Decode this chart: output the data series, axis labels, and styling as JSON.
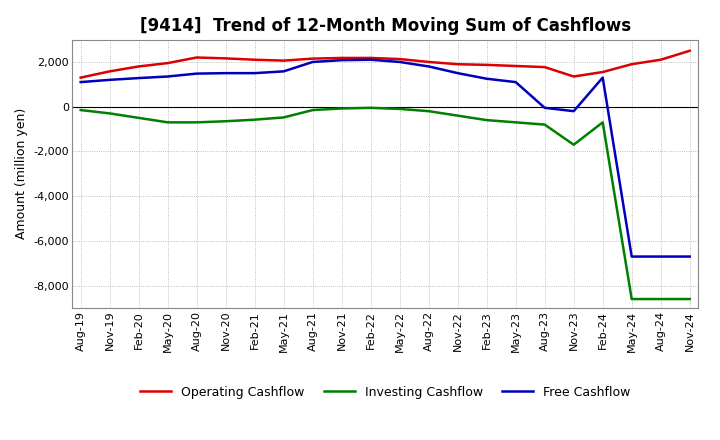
{
  "title": "[9414]  Trend of 12-Month Moving Sum of Cashflows",
  "ylabel": "Amount (million yen)",
  "xlabels": [
    "Aug-19",
    "Nov-19",
    "Feb-20",
    "May-20",
    "Aug-20",
    "Nov-20",
    "Feb-21",
    "May-21",
    "Aug-21",
    "Nov-21",
    "Feb-22",
    "May-22",
    "Aug-22",
    "Nov-22",
    "Feb-23",
    "May-23",
    "Aug-23",
    "Nov-23",
    "Feb-24",
    "May-24",
    "Aug-24",
    "Nov-24"
  ],
  "operating": [
    1300,
    1580,
    1800,
    1950,
    2200,
    2160,
    2100,
    2060,
    2150,
    2180,
    2180,
    2130,
    2000,
    1900,
    1870,
    1820,
    1770,
    1350,
    1550,
    1900,
    2100,
    2500
  ],
  "investing": [
    -150,
    -300,
    -500,
    -700,
    -700,
    -650,
    -580,
    -480,
    -150,
    -80,
    -50,
    -100,
    -200,
    -400,
    -600,
    -700,
    -800,
    -1700,
    -700,
    -8600,
    -8600,
    -8600
  ],
  "free": [
    1100,
    1200,
    1280,
    1350,
    1480,
    1500,
    1500,
    1580,
    2000,
    2080,
    2100,
    2000,
    1800,
    1500,
    1250,
    1100,
    -50,
    -200,
    1300,
    -6700,
    -6700,
    -6700
  ],
  "operating_color": "#dd0000",
  "investing_color": "#008000",
  "free_color": "#0000bb",
  "ylim": [
    -9000,
    3000
  ],
  "yticks": [
    -8000,
    -6000,
    -4000,
    -2000,
    0,
    2000
  ],
  "background_color": "#ffffff",
  "grid_color": "#aaaaaa",
  "title_fontsize": 12,
  "legend_fontsize": 9,
  "tick_fontsize": 8
}
